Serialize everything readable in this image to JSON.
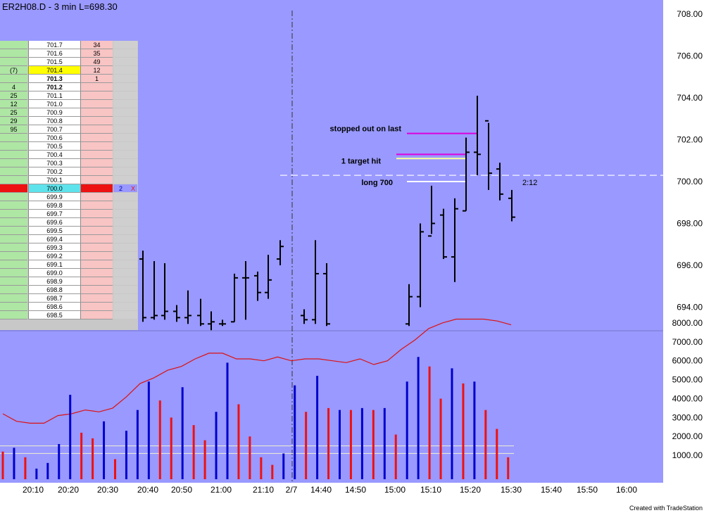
{
  "header": {
    "title": "ER2H08.D - 3 min  L=698.30"
  },
  "footer": {
    "credit": "Created with TradeStation"
  },
  "colors": {
    "background": "#9999ff",
    "bar": "#000000",
    "volume_up": "#0000cc",
    "volume_down": "#ee1111",
    "ma_line": "#dd1111",
    "order_line": "#e8e8ff",
    "stop_line": "#dd00dd",
    "target_line": "#ffff99",
    "entry_line": "#ffffff"
  },
  "chart_data": [
    {
      "type": "ohlc",
      "title": "ER2H08.D - 3 min  L=698.30",
      "x_tick_labels": [
        "20:10",
        "20:20",
        "20:30",
        "20:40",
        "20:50",
        "21:00",
        "21:10",
        "2/7",
        "14:40",
        "14:50",
        "15:00",
        "15:10",
        "15:20",
        "15:30",
        "15:40",
        "15:50",
        "16:00"
      ],
      "y_tick_labels": [
        "708.00",
        "706.00",
        "704.00",
        "702.00",
        "700.00",
        "698.00",
        "696.00",
        "694.00"
      ],
      "ylim": [
        692.4,
        708.3
      ],
      "last": 698.3,
      "bars": [
        {
          "o": 696.3,
          "h": 696.7,
          "l": 693.3,
          "c": 693.5
        },
        {
          "o": 693.5,
          "h": 696.2,
          "l": 693.4,
          "c": 693.6
        },
        {
          "o": 693.6,
          "h": 696.1,
          "l": 693.4,
          "c": 693.8
        },
        {
          "o": 693.8,
          "h": 694.1,
          "l": 693.3,
          "c": 693.5
        },
        {
          "o": 693.5,
          "h": 694.8,
          "l": 693.2,
          "c": 693.6
        },
        {
          "o": 693.6,
          "h": 694.4,
          "l": 693.1,
          "c": 693.2
        },
        {
          "o": 693.2,
          "h": 693.8,
          "l": 692.9,
          "c": 693.3
        },
        {
          "o": 693.2,
          "h": 693.4,
          "l": 693.1,
          "c": 693.2
        },
        {
          "o": 693.3,
          "h": 695.6,
          "l": 693.3,
          "c": 695.4
        },
        {
          "o": 695.4,
          "h": 696.2,
          "l": 693.4,
          "c": 695.4
        },
        {
          "o": 695.5,
          "h": 695.7,
          "l": 694.3,
          "c": 694.7
        },
        {
          "o": 694.7,
          "h": 696.5,
          "l": 694.4,
          "c": 695.3
        },
        {
          "o": 696.3,
          "h": 697.2,
          "l": 696.0,
          "c": 696.9
        },
        {
          "o": 693.6,
          "h": 693.9,
          "l": 693.2,
          "c": 693.4
        },
        {
          "o": 693.4,
          "h": 697.2,
          "l": 693.2,
          "c": 695.6
        },
        {
          "o": 695.6,
          "h": 696.1,
          "l": 693.1,
          "c": 693.2
        },
        {
          "o": 693.2,
          "h": 695.1,
          "l": 693.1,
          "c": 694.5
        },
        {
          "o": 694.5,
          "h": 698.0,
          "l": 694.0,
          "c": 697.6
        },
        {
          "o": 697.4,
          "h": 699.8,
          "l": 697.5,
          "c": 698.0
        },
        {
          "o": 698.4,
          "h": 698.7,
          "l": 696.3,
          "c": 696.4
        },
        {
          "o": 696.4,
          "h": 699.2,
          "l": 695.2,
          "c": 698.7
        },
        {
          "o": 698.6,
          "h": 702.1,
          "l": 698.6,
          "c": 701.4
        },
        {
          "o": 701.4,
          "h": 704.1,
          "l": 700.3,
          "c": 701.3
        },
        {
          "o": 702.9,
          "h": 702.8,
          "l": 699.6,
          "c": 700.4
        },
        {
          "o": 700.6,
          "h": 700.9,
          "l": 699.1,
          "c": 699.4
        },
        {
          "o": 699.2,
          "h": 699.6,
          "l": 698.1,
          "c": 698.3
        }
      ],
      "levels": [
        {
          "label": "stopped out on last",
          "value": 702.3
        },
        {
          "label": "",
          "value": 701.3
        },
        {
          "label": "1 target hit",
          "value": 701.1
        },
        {
          "label": "long 700",
          "value": 700.0
        },
        {
          "label": "",
          "value": 700.3
        }
      ],
      "annotations": [
        "2:12"
      ]
    },
    {
      "type": "bar+line",
      "y_tick_labels": [
        "8000.00",
        "7000.00",
        "6000.00",
        "5000.00",
        "4000.00",
        "3000.00",
        "2000.00",
        "1000.00"
      ],
      "ylim": [
        0,
        8500
      ],
      "reference_lines": [
        1500,
        1100
      ],
      "volume": [
        {
          "v": 1200,
          "c": "down"
        },
        {
          "v": 1400,
          "c": "up"
        },
        {
          "v": 900,
          "c": "down"
        },
        {
          "v": 300,
          "c": "up"
        },
        {
          "v": 600,
          "c": "up"
        },
        {
          "v": 1600,
          "c": "up"
        },
        {
          "v": 4200,
          "c": "up"
        },
        {
          "v": 2200,
          "c": "down"
        },
        {
          "v": 1900,
          "c": "down"
        },
        {
          "v": 2800,
          "c": "up"
        },
        {
          "v": 800,
          "c": "down"
        },
        {
          "v": 2300,
          "c": "up"
        },
        {
          "v": 3400,
          "c": "up"
        },
        {
          "v": 4900,
          "c": "up"
        },
        {
          "v": 3900,
          "c": "down"
        },
        {
          "v": 3000,
          "c": "down"
        },
        {
          "v": 4600,
          "c": "up"
        },
        {
          "v": 2600,
          "c": "down"
        },
        {
          "v": 1800,
          "c": "down"
        },
        {
          "v": 3300,
          "c": "up"
        },
        {
          "v": 5900,
          "c": "up"
        },
        {
          "v": 3700,
          "c": "down"
        },
        {
          "v": 2000,
          "c": "down"
        },
        {
          "v": 900,
          "c": "down"
        },
        {
          "v": 500,
          "c": "down"
        },
        {
          "v": 1100,
          "c": "up"
        },
        {
          "v": 4700,
          "c": "up"
        },
        {
          "v": 3300,
          "c": "down"
        },
        {
          "v": 5200,
          "c": "up"
        },
        {
          "v": 3500,
          "c": "down"
        },
        {
          "v": 3400,
          "c": "up"
        },
        {
          "v": 3400,
          "c": "down"
        },
        {
          "v": 3500,
          "c": "up"
        },
        {
          "v": 3400,
          "c": "down"
        },
        {
          "v": 3500,
          "c": "up"
        },
        {
          "v": 2100,
          "c": "down"
        },
        {
          "v": 4900,
          "c": "up"
        },
        {
          "v": 6200,
          "c": "up"
        },
        {
          "v": 5700,
          "c": "down"
        },
        {
          "v": 4000,
          "c": "down"
        },
        {
          "v": 5600,
          "c": "up"
        },
        {
          "v": 4800,
          "c": "down"
        },
        {
          "v": 4900,
          "c": "up"
        },
        {
          "v": 3400,
          "c": "down"
        },
        {
          "v": 2400,
          "c": "down"
        },
        {
          "v": 900,
          "c": "down"
        }
      ],
      "moving_average": [
        3200,
        2800,
        2700,
        2700,
        3100,
        3200,
        3400,
        3300,
        3500,
        4100,
        4800,
        5100,
        5500,
        5700,
        6100,
        6400,
        6400,
        6100,
        6100,
        6000,
        6200,
        6000,
        6100,
        6100,
        6000,
        5900,
        6100,
        5800,
        6000,
        6600,
        7100,
        7700,
        8000,
        8200,
        8200,
        8200,
        8100,
        7900
      ]
    }
  ],
  "ladder": {
    "rows": [
      {
        "bid": "",
        "price": "701.7",
        "ask": "34",
        "bold": false,
        "hl": false
      },
      {
        "bid": "",
        "price": "701.6",
        "ask": "35",
        "bold": false,
        "hl": false
      },
      {
        "bid": "",
        "price": "701.5",
        "ask": "49",
        "bold": false,
        "hl": false
      },
      {
        "bid": "(7)",
        "price": "701.4",
        "ask": "12",
        "bold": false,
        "hl": true
      },
      {
        "bid": "",
        "price": "701.3",
        "ask": "1",
        "bold": true,
        "hl": false
      },
      {
        "bid": "4",
        "price": "701.2",
        "ask": "",
        "bold": true,
        "hl": false
      },
      {
        "bid": "25",
        "price": "701.1",
        "ask": "",
        "bold": false,
        "hl": false
      },
      {
        "bid": "12",
        "price": "701.0",
        "ask": "",
        "bold": false,
        "hl": false
      },
      {
        "bid": "25",
        "price": "700.9",
        "ask": "",
        "bold": false,
        "hl": false
      },
      {
        "bid": "29",
        "price": "700.8",
        "ask": "",
        "bold": false,
        "hl": false
      },
      {
        "bid": "95",
        "price": "700.7",
        "ask": "",
        "bold": false,
        "hl": false
      },
      {
        "bid": "",
        "price": "700.6",
        "ask": "",
        "bold": false,
        "hl": false
      },
      {
        "bid": "",
        "price": "700.5",
        "ask": "",
        "bold": false,
        "hl": false
      },
      {
        "bid": "",
        "price": "700.4",
        "ask": "",
        "bold": false,
        "hl": false
      },
      {
        "bid": "",
        "price": "700.3",
        "ask": "",
        "bold": false,
        "hl": false
      },
      {
        "bid": "",
        "price": "700.2",
        "ask": "",
        "bold": false,
        "hl": false
      },
      {
        "bid": "",
        "price": "700.1",
        "ask": "",
        "bold": false,
        "hl": false
      },
      {
        "bid": "",
        "price": "700.0",
        "ask": "",
        "bold": false,
        "hl": false,
        "current": true,
        "order_qty": "2",
        "order_x": "X"
      },
      {
        "bid": "",
        "price": "699.9",
        "ask": "",
        "bold": false,
        "hl": false
      },
      {
        "bid": "",
        "price": "699.8",
        "ask": "",
        "bold": false,
        "hl": false
      },
      {
        "bid": "",
        "price": "699.7",
        "ask": "",
        "bold": false,
        "hl": false
      },
      {
        "bid": "",
        "price": "699.6",
        "ask": "",
        "bold": false,
        "hl": false
      },
      {
        "bid": "",
        "price": "699.5",
        "ask": "",
        "bold": false,
        "hl": false
      },
      {
        "bid": "",
        "price": "699.4",
        "ask": "",
        "bold": false,
        "hl": false
      },
      {
        "bid": "",
        "price": "699.3",
        "ask": "",
        "bold": false,
        "hl": false
      },
      {
        "bid": "",
        "price": "699.2",
        "ask": "",
        "bold": false,
        "hl": false
      },
      {
        "bid": "",
        "price": "699.1",
        "ask": "",
        "bold": false,
        "hl": false
      },
      {
        "bid": "",
        "price": "699.0",
        "ask": "",
        "bold": false,
        "hl": false
      },
      {
        "bid": "",
        "price": "698.9",
        "ask": "",
        "bold": false,
        "hl": false
      },
      {
        "bid": "",
        "price": "698.8",
        "ask": "",
        "bold": false,
        "hl": false
      },
      {
        "bid": "",
        "price": "698.7",
        "ask": "",
        "bold": false,
        "hl": false
      },
      {
        "bid": "",
        "price": "698.6",
        "ask": "",
        "bold": false,
        "hl": false
      },
      {
        "bid": "",
        "price": "698.5",
        "ask": "",
        "bold": false,
        "hl": false
      }
    ]
  }
}
